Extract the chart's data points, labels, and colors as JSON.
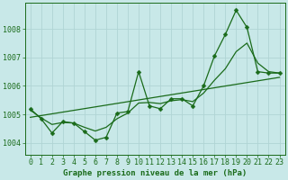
{
  "title": "Graphe pression niveau de la mer (hPa)",
  "background_color": "#c8e8e8",
  "grid_color": "#b0d4d4",
  "line_color": "#1a6b1a",
  "xlim": [
    -0.5,
    23.5
  ],
  "ylim": [
    1003.6,
    1008.9
  ],
  "yticks": [
    1004,
    1005,
    1006,
    1007,
    1008
  ],
  "xticks": [
    0,
    1,
    2,
    3,
    4,
    5,
    6,
    7,
    8,
    9,
    10,
    11,
    12,
    13,
    14,
    15,
    16,
    17,
    18,
    19,
    20,
    21,
    22,
    23
  ],
  "series_main_x": [
    0,
    1,
    2,
    3,
    4,
    5,
    6,
    7,
    8,
    9,
    10,
    11,
    12,
    13,
    14,
    15,
    16,
    17,
    18,
    19,
    20,
    21,
    22,
    23
  ],
  "series_main_y": [
    1005.2,
    1004.85,
    1004.35,
    1004.75,
    1004.7,
    1004.4,
    1004.1,
    1004.2,
    1005.05,
    1005.1,
    1006.5,
    1005.3,
    1005.2,
    1005.55,
    1005.55,
    1005.3,
    1006.0,
    1007.05,
    1007.8,
    1008.65,
    1008.05,
    1006.5,
    1006.45,
    1006.45
  ],
  "series_smooth_x": [
    0,
    1,
    2,
    3,
    4,
    5,
    6,
    7,
    8,
    9,
    10,
    11,
    12,
    13,
    14,
    15,
    16,
    17,
    18,
    19,
    20,
    21,
    22,
    23
  ],
  "series_smooth_y": [
    1005.15,
    1004.88,
    1004.65,
    1004.72,
    1004.7,
    1004.55,
    1004.42,
    1004.55,
    1004.85,
    1005.05,
    1005.4,
    1005.42,
    1005.38,
    1005.48,
    1005.52,
    1005.45,
    1005.75,
    1006.2,
    1006.6,
    1007.2,
    1007.5,
    1006.8,
    1006.5,
    1006.45
  ],
  "series_trend_x": [
    0,
    23
  ],
  "series_trend_y": [
    1004.9,
    1006.3
  ],
  "marker_size": 2.5,
  "label_fontsize": 6,
  "title_fontsize": 6.5
}
